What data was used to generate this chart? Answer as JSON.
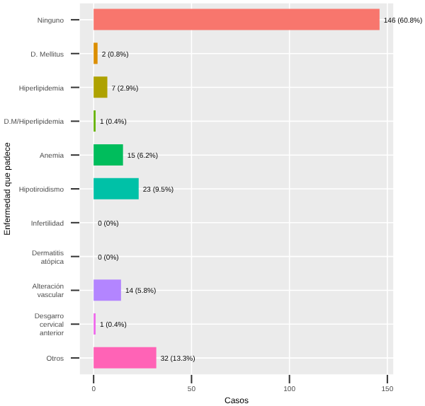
{
  "chart_data": {
    "type": "bar",
    "orientation": "horizontal",
    "xlabel": "Casos",
    "ylabel": "Enfermedad que padece",
    "categories": [
      "Ninguno",
      "D. Mellitus",
      "Hiperlipidemia",
      "D.M/Hiperlipidemia",
      "Anemia",
      "Hipotiroidismo",
      "Infertilidad",
      "Dermatitis\natópica",
      "Alteración\nvascular",
      "Desgarro\ncervical\nanterior",
      "Otros"
    ],
    "values": [
      146,
      2,
      7,
      1,
      15,
      23,
      0,
      0,
      14,
      1,
      32
    ],
    "colors": [
      "#f8766d",
      "#db8e00",
      "#aea200",
      "#64b200",
      "#00bd5c",
      "#00c1a7",
      "#00bade",
      "#00a6ff",
      "#b385ff",
      "#ef67eb",
      "#ff63b6"
    ],
    "value_labels": [
      "146 (60.8%)",
      "2 (0.8%)",
      "7 (2.9%)",
      "1 (0.4%)",
      "15 (6.2%)",
      "23 (9.5%)",
      "0 (0%)",
      "0 (0%)",
      "14 (5.8%)",
      "1 (0.4%)",
      "32 (13.3%)"
    ],
    "xlim": [
      -7.3,
      153.3
    ],
    "xticks": [
      0,
      50,
      100,
      150
    ],
    "grid": true
  }
}
